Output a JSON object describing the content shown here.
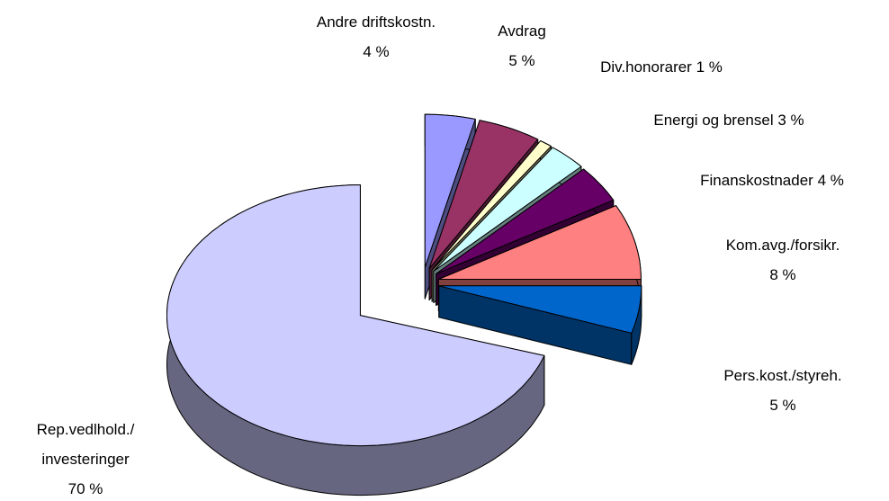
{
  "chart_data": {
    "type": "pie3d",
    "categories": [
      "Andre driftskostn.",
      "Avdrag",
      "Div.honorarer",
      "Energi og brensel",
      "Finanskostnader",
      "Kom.avg./forsikr.",
      "Pers.kost./styreh.",
      "Rep.vedlhold./ investeringer"
    ],
    "values": [
      4,
      5,
      1,
      3,
      4,
      8,
      5,
      70
    ],
    "value_labels": [
      "4 %",
      "5 %",
      "1 %",
      "3 %",
      "4 %",
      "8 %",
      "5 %",
      "70 %"
    ],
    "colors": [
      "#9999ff",
      "#993366",
      "#ffffcc",
      "#ccffff",
      "#660066",
      "#ff8080",
      "#0066cc",
      "#ccccff"
    ],
    "exploded": true
  }
}
